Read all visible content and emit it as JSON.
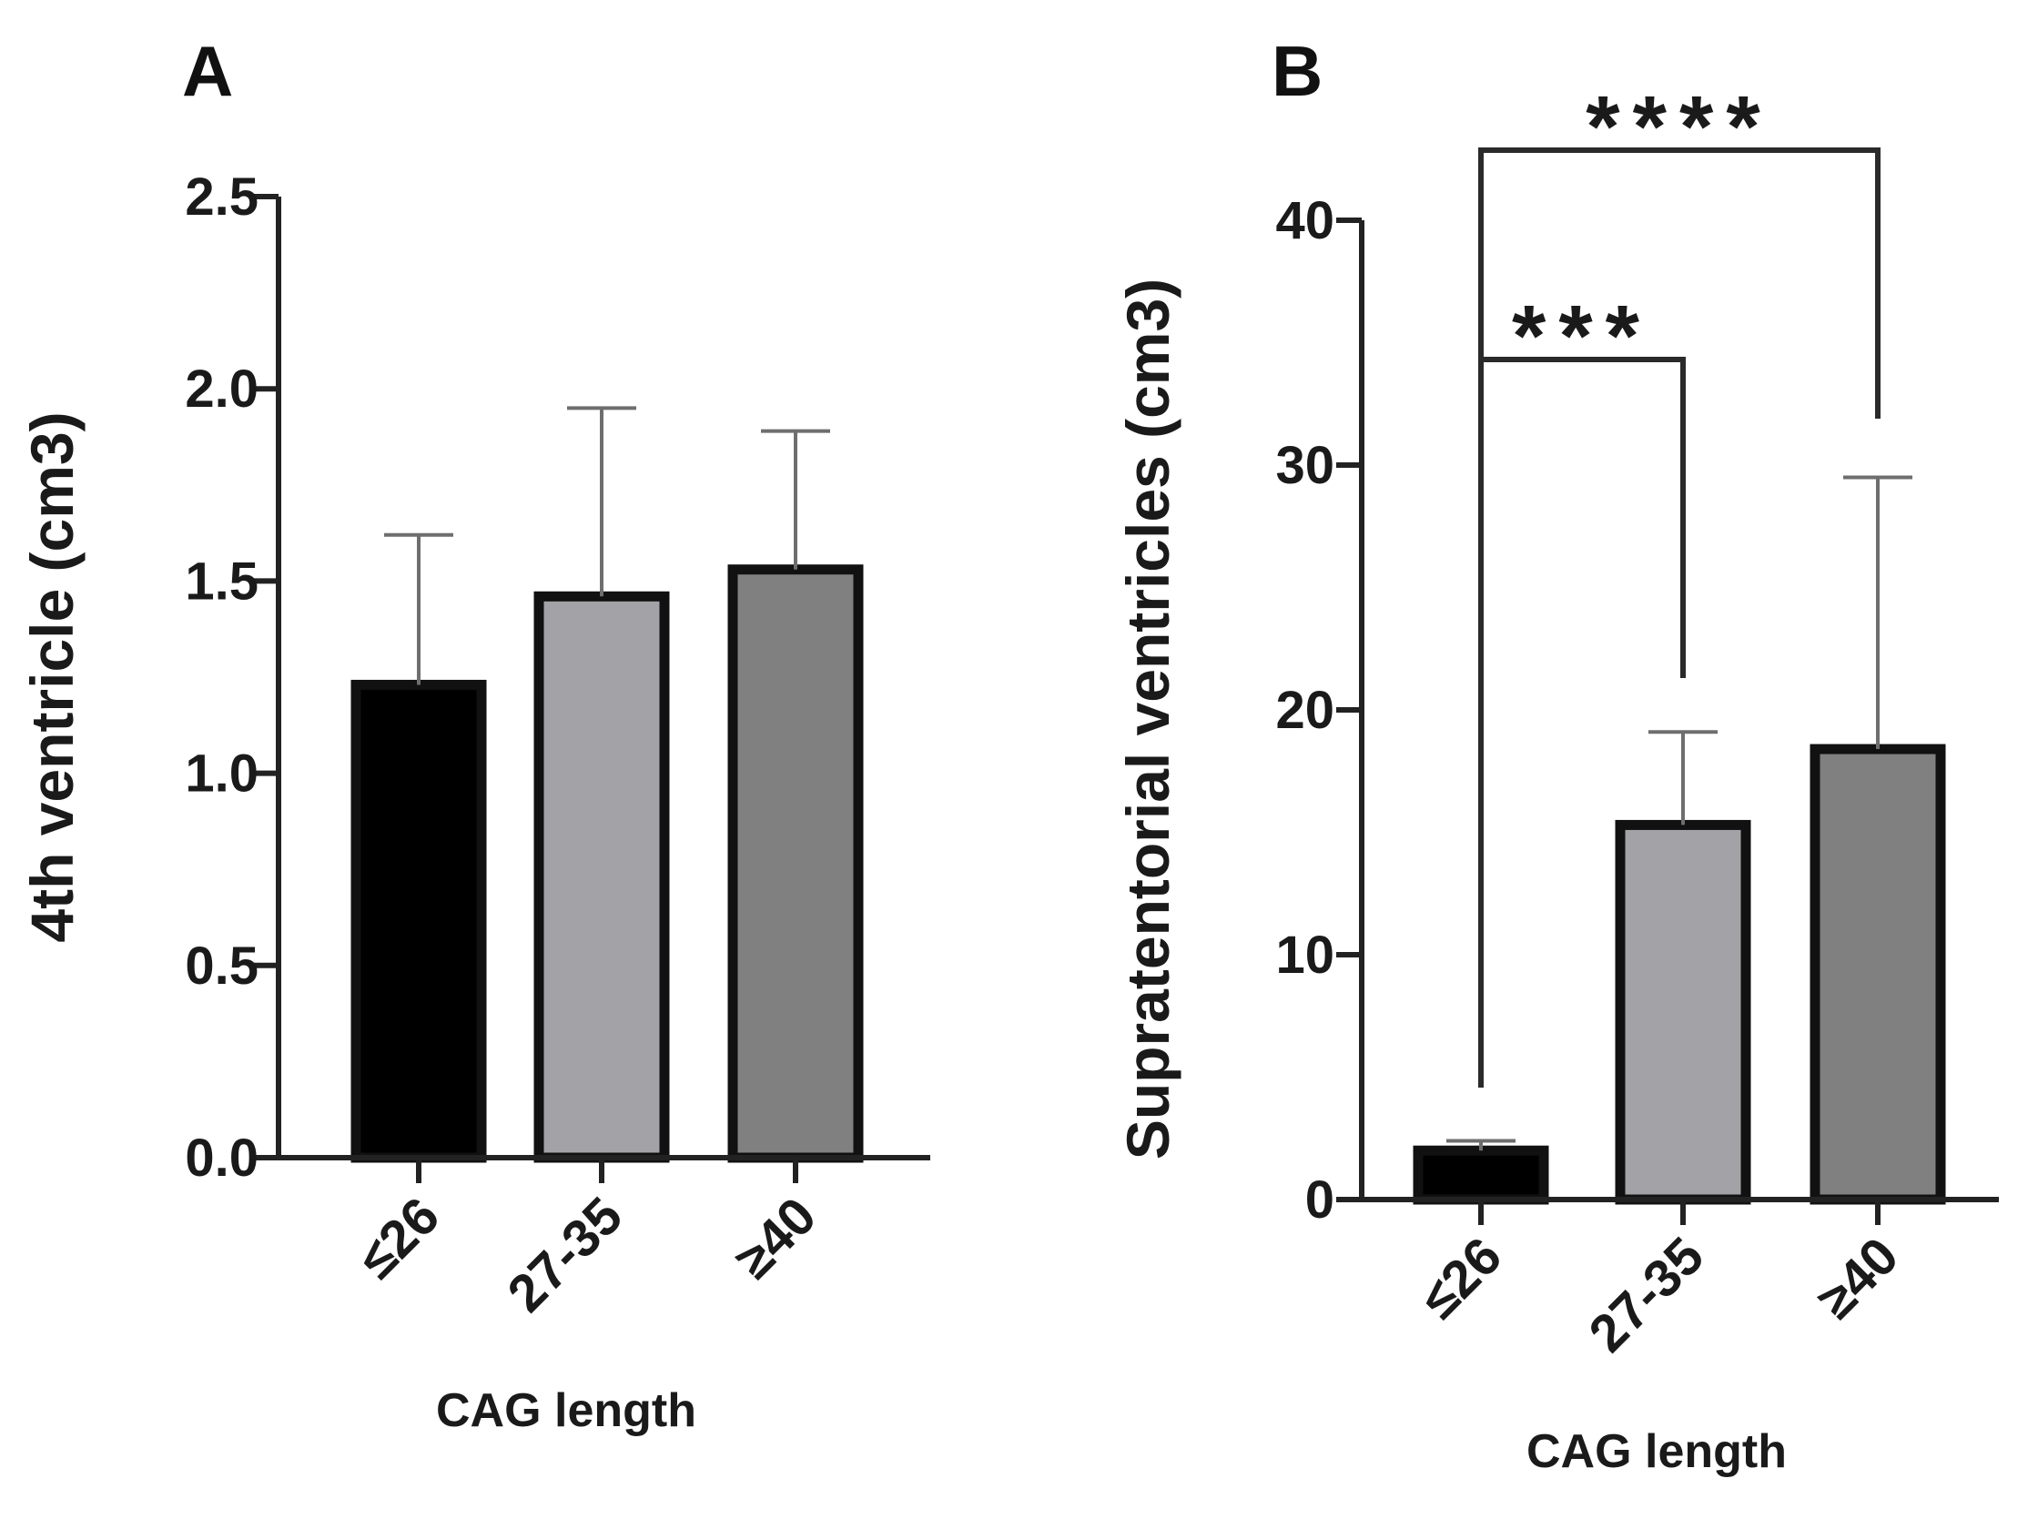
{
  "chart_data": [
    {
      "panel": "A",
      "type": "bar",
      "categories": [
        "≤26",
        "27-35",
        "≥40"
      ],
      "values": [
        1.23,
        1.46,
        1.53
      ],
      "errors": [
        0.39,
        0.49,
        0.36
      ],
      "ylim": [
        0,
        2.5
      ],
      "yticks": [
        "0.0",
        "0.5",
        "1.0",
        "1.5",
        "2.0",
        "2.5"
      ],
      "xlabel": "CAG length",
      "ylabel": "4th ventricle (cm3)",
      "colors": [
        "#000000",
        "#a3a3a7",
        "#808080"
      ]
    },
    {
      "panel": "B",
      "type": "bar",
      "categories": [
        "≤26",
        "27-35",
        "≥40"
      ],
      "values": [
        2.0,
        15.3,
        18.4
      ],
      "errors": [
        0.4,
        3.8,
        11.1
      ],
      "ylim": [
        0,
        40
      ],
      "yticks": [
        "0",
        "10",
        "20",
        "30",
        "40"
      ],
      "xlabel": "CAG length",
      "ylabel": "Supratentorial ventricles (cm3)",
      "colors": [
        "#000000",
        "#a3a3a7",
        "#808080"
      ],
      "annotations": [
        {
          "from": 0,
          "to": 1,
          "label": "***"
        },
        {
          "from": 0,
          "to": 2,
          "label": "****"
        }
      ]
    }
  ]
}
